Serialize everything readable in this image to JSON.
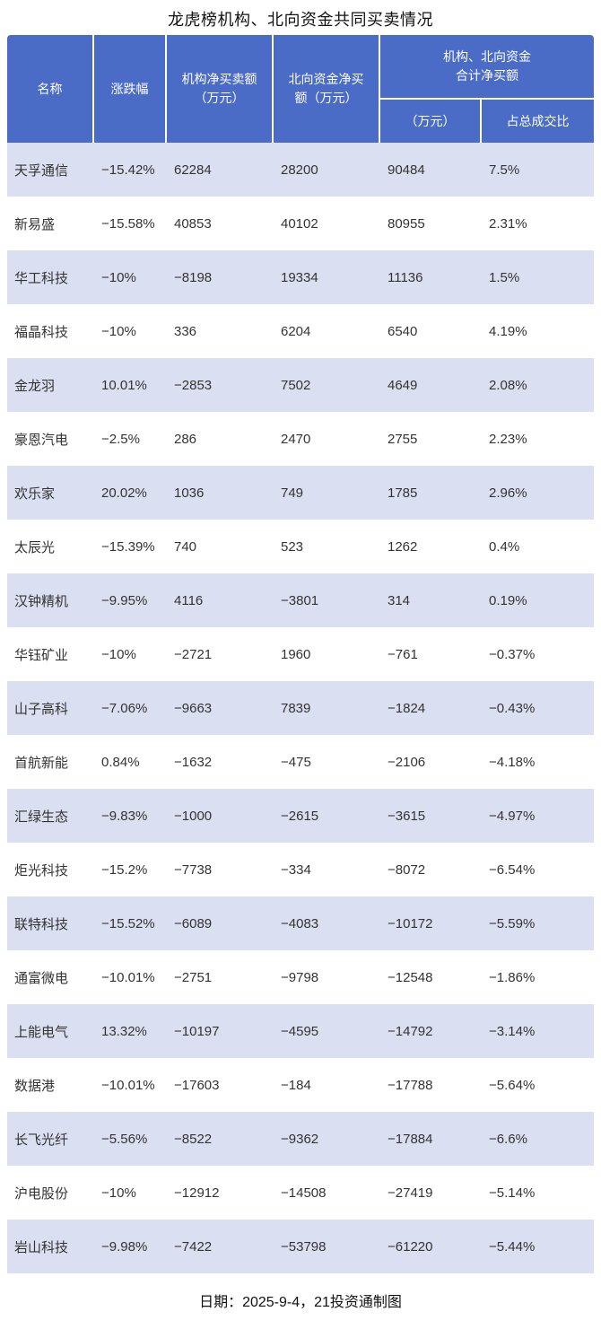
{
  "colors": {
    "header_bg": "#4a6bc6",
    "header_text": "#ffffff",
    "stripe_bg": "#dbdff2",
    "body_text": "#333333"
  },
  "chart_data": {
    "type": "table",
    "title": "龙虎榜机构、北向资金共同买卖情况",
    "footer": "日期：2025-9-4，21投资通制图",
    "header": {
      "name": "名称",
      "change": "涨跌幅",
      "inst_net": "机构净买卖额\n（万元）",
      "north_net": "北向资金净买\n额（万元）",
      "group": "机构、北向资金\n合计净买额",
      "group_sub_amount": "（万元）",
      "group_sub_ratio": "占总成交比"
    },
    "column_keys": [
      "name",
      "change",
      "inst_net",
      "north_net",
      "total_net",
      "ratio"
    ],
    "rows": [
      {
        "name": "天孚通信",
        "change": "−15.42%",
        "inst_net": "62284",
        "north_net": "28200",
        "total_net": "90484",
        "ratio": "7.5%"
      },
      {
        "name": "新易盛",
        "change": "−15.58%",
        "inst_net": "40853",
        "north_net": "40102",
        "total_net": "80955",
        "ratio": "2.31%"
      },
      {
        "name": "华工科技",
        "change": "−10%",
        "inst_net": "−8198",
        "north_net": "19334",
        "total_net": "11136",
        "ratio": "1.5%"
      },
      {
        "name": "福晶科技",
        "change": "−10%",
        "inst_net": "336",
        "north_net": "6204",
        "total_net": "6540",
        "ratio": "4.19%"
      },
      {
        "name": "金龙羽",
        "change": "10.01%",
        "inst_net": "−2853",
        "north_net": "7502",
        "total_net": "4649",
        "ratio": "2.08%"
      },
      {
        "name": "豪恩汽电",
        "change": "−2.5%",
        "inst_net": "286",
        "north_net": "2470",
        "total_net": "2755",
        "ratio": "2.23%"
      },
      {
        "name": "欢乐家",
        "change": "20.02%",
        "inst_net": "1036",
        "north_net": "749",
        "total_net": "1785",
        "ratio": "2.96%"
      },
      {
        "name": "太辰光",
        "change": "−15.39%",
        "inst_net": "740",
        "north_net": "523",
        "total_net": "1262",
        "ratio": "0.4%"
      },
      {
        "name": "汉钟精机",
        "change": "−9.95%",
        "inst_net": "4116",
        "north_net": "−3801",
        "total_net": "314",
        "ratio": "0.19%"
      },
      {
        "name": "华钰矿业",
        "change": "−10%",
        "inst_net": "−2721",
        "north_net": "1960",
        "total_net": "−761",
        "ratio": "−0.37%"
      },
      {
        "name": "山子高科",
        "change": "−7.06%",
        "inst_net": "−9663",
        "north_net": "7839",
        "total_net": "−1824",
        "ratio": "−0.43%"
      },
      {
        "name": "首航新能",
        "change": "0.84%",
        "inst_net": "−1632",
        "north_net": "−475",
        "total_net": "−2106",
        "ratio": "−4.18%"
      },
      {
        "name": "汇绿生态",
        "change": "−9.83%",
        "inst_net": "−1000",
        "north_net": "−2615",
        "total_net": "−3615",
        "ratio": "−4.97%"
      },
      {
        "name": "炬光科技",
        "change": "−15.2%",
        "inst_net": "−7738",
        "north_net": "−334",
        "total_net": "−8072",
        "ratio": "−6.54%"
      },
      {
        "name": "联特科技",
        "change": "−15.52%",
        "inst_net": "−6089",
        "north_net": "−4083",
        "total_net": "−10172",
        "ratio": "−5.59%"
      },
      {
        "name": "通富微电",
        "change": "−10.01%",
        "inst_net": "−2751",
        "north_net": "−9798",
        "total_net": "−12548",
        "ratio": "−1.86%"
      },
      {
        "name": "上能电气",
        "change": "13.32%",
        "inst_net": "−10197",
        "north_net": "−4595",
        "total_net": "−14792",
        "ratio": "−3.14%"
      },
      {
        "name": "数据港",
        "change": "−10.01%",
        "inst_net": "−17603",
        "north_net": "−184",
        "total_net": "−17788",
        "ratio": "−5.64%"
      },
      {
        "name": "长飞光纤",
        "change": "−5.56%",
        "inst_net": "−8522",
        "north_net": "−9362",
        "total_net": "−17884",
        "ratio": "−6.6%"
      },
      {
        "name": "沪电股份",
        "change": "−10%",
        "inst_net": "−12912",
        "north_net": "−14508",
        "total_net": "−27419",
        "ratio": "−5.14%"
      },
      {
        "name": "岩山科技",
        "change": "−9.98%",
        "inst_net": "−7422",
        "north_net": "−53798",
        "total_net": "−61220",
        "ratio": "−5.44%"
      }
    ]
  }
}
